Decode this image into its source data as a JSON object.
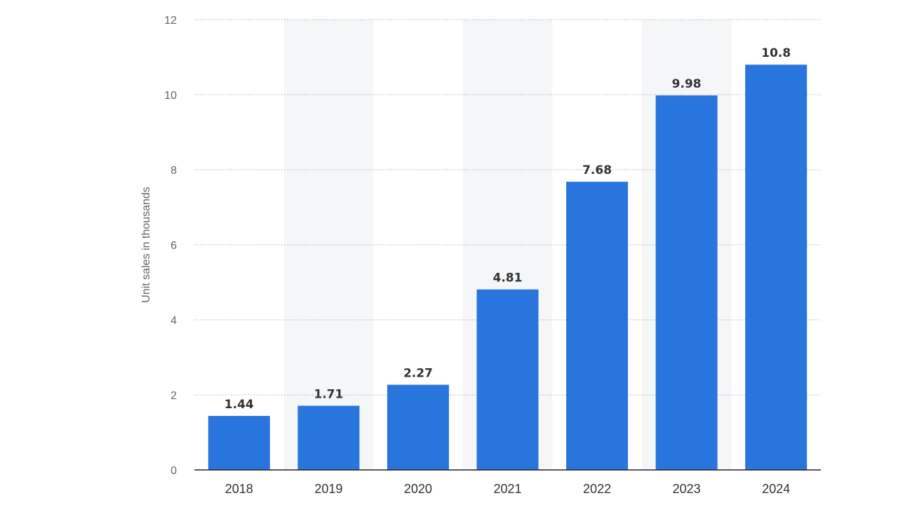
{
  "chart_data": {
    "type": "bar",
    "categories": [
      "2018",
      "2019",
      "2020",
      "2021",
      "2022",
      "2023",
      "2024"
    ],
    "values": [
      1.44,
      1.71,
      2.27,
      4.81,
      7.68,
      9.98,
      10.8
    ],
    "value_labels": [
      "1.44",
      "1.71",
      "2.27",
      "4.81",
      "7.68",
      "9.98",
      "10.8"
    ],
    "title": "",
    "xlabel": "",
    "ylabel": "Unit sales in thousands",
    "ylim": [
      0,
      12
    ],
    "yticks": [
      "0",
      "2",
      "4",
      "6",
      "8",
      "10",
      "12"
    ],
    "grid": true,
    "bar_color": "#2876dd",
    "alt_band_color": "#f5f6f8"
  }
}
